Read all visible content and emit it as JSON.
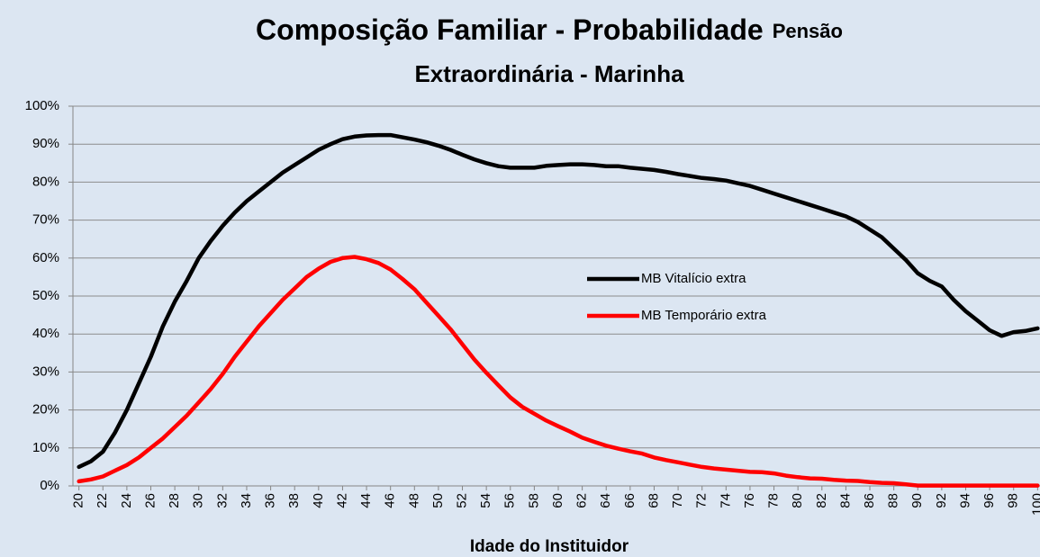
{
  "chart_data": {
    "type": "line",
    "title": [
      "Composição Familiar - Probabilidade",
      "Pensão",
      "Extraordinária - Marinha"
    ],
    "xlabel": "Idade do Instituidor",
    "x": [
      20,
      21,
      22,
      23,
      24,
      25,
      26,
      27,
      28,
      29,
      30,
      31,
      32,
      33,
      34,
      35,
      36,
      37,
      38,
      39,
      40,
      41,
      42,
      43,
      44,
      45,
      46,
      47,
      48,
      49,
      50,
      51,
      52,
      53,
      54,
      55,
      56,
      57,
      58,
      59,
      60,
      61,
      62,
      63,
      64,
      65,
      66,
      67,
      68,
      69,
      70,
      71,
      72,
      73,
      74,
      75,
      76,
      77,
      78,
      79,
      80,
      81,
      82,
      83,
      84,
      85,
      86,
      87,
      88,
      89,
      90,
      91,
      92,
      93,
      94,
      95,
      96,
      97,
      98,
      99,
      100
    ],
    "xlim": [
      19.5,
      100.5
    ],
    "xticks": [
      20,
      22,
      24,
      26,
      28,
      30,
      32,
      34,
      36,
      38,
      40,
      42,
      44,
      46,
      48,
      50,
      52,
      54,
      56,
      58,
      60,
      62,
      64,
      66,
      68,
      70,
      72,
      74,
      76,
      78,
      80,
      82,
      84,
      86,
      88,
      90,
      92,
      94,
      96,
      98,
      100
    ],
    "ylim": [
      0,
      100
    ],
    "yticks": [
      {
        "value": 0,
        "label": "0%"
      },
      {
        "value": 10,
        "label": "10%"
      },
      {
        "value": 20,
        "label": "20%"
      },
      {
        "value": 30,
        "label": "30%"
      },
      {
        "value": 40,
        "label": "40%"
      },
      {
        "value": 50,
        "label": "50%"
      },
      {
        "value": 60,
        "label": "60%"
      },
      {
        "value": 70,
        "label": "70%"
      },
      {
        "value": 80,
        "label": "80%"
      },
      {
        "value": 90,
        "label": "90%"
      },
      {
        "value": 100,
        "label": "100%"
      }
    ],
    "grid": true,
    "legend": "center",
    "series": [
      {
        "name": "MB Vitalício extra",
        "color": "#000000",
        "values": [
          5,
          6.5,
          9,
          14,
          20,
          27,
          34,
          42,
          48.5,
          54,
          60,
          64.5,
          68.5,
          72,
          75,
          77.5,
          80,
          82.5,
          84.5,
          86.5,
          88.5,
          90,
          91.3,
          92,
          92.3,
          92.4,
          92.4,
          91.8,
          91.2,
          90.5,
          89.6,
          88.5,
          87.2,
          86,
          85,
          84.2,
          83.8,
          83.8,
          83.8,
          84.3,
          84.5,
          84.7,
          84.7,
          84.5,
          84.2,
          84.2,
          83.8,
          83.5,
          83.2,
          82.7,
          82.1,
          81.6,
          81.1,
          80.8,
          80.4,
          79.7,
          79,
          78,
          77,
          76,
          75,
          74,
          73,
          72,
          71,
          69.5,
          67.5,
          65.5,
          62.5,
          59.5,
          56,
          54,
          52.5,
          49,
          46,
          43.5,
          41,
          39.5,
          40.5,
          40.8,
          41.5
        ]
      },
      {
        "name": "MB Temporário extra",
        "color": "#ff0000",
        "values": [
          1.2,
          1.7,
          2.5,
          4,
          5.5,
          7.5,
          10,
          12.5,
          15.5,
          18.5,
          22,
          25.5,
          29.5,
          34,
          38,
          42,
          45.5,
          49,
          52,
          55,
          57.2,
          59,
          60,
          60.3,
          59.7,
          58.7,
          57,
          54.5,
          51.8,
          48.3,
          44.8,
          41.3,
          37.3,
          33.3,
          29.8,
          26.5,
          23.3,
          20.8,
          19,
          17.2,
          15.7,
          14.3,
          12.7,
          11.6,
          10.6,
          9.8,
          9.1,
          8.5,
          7.5,
          6.8,
          6.2,
          5.6,
          5,
          4.6,
          4.3,
          4,
          3.7,
          3.6,
          3.3,
          2.7,
          2.3,
          2,
          1.9,
          1.6,
          1.4,
          1.3,
          1,
          0.8,
          0.7,
          0.4,
          0.1,
          0.1,
          0.1,
          0.1,
          0.1,
          0.1,
          0.1,
          0.1,
          0.1,
          0.1,
          0.1
        ]
      }
    ]
  }
}
